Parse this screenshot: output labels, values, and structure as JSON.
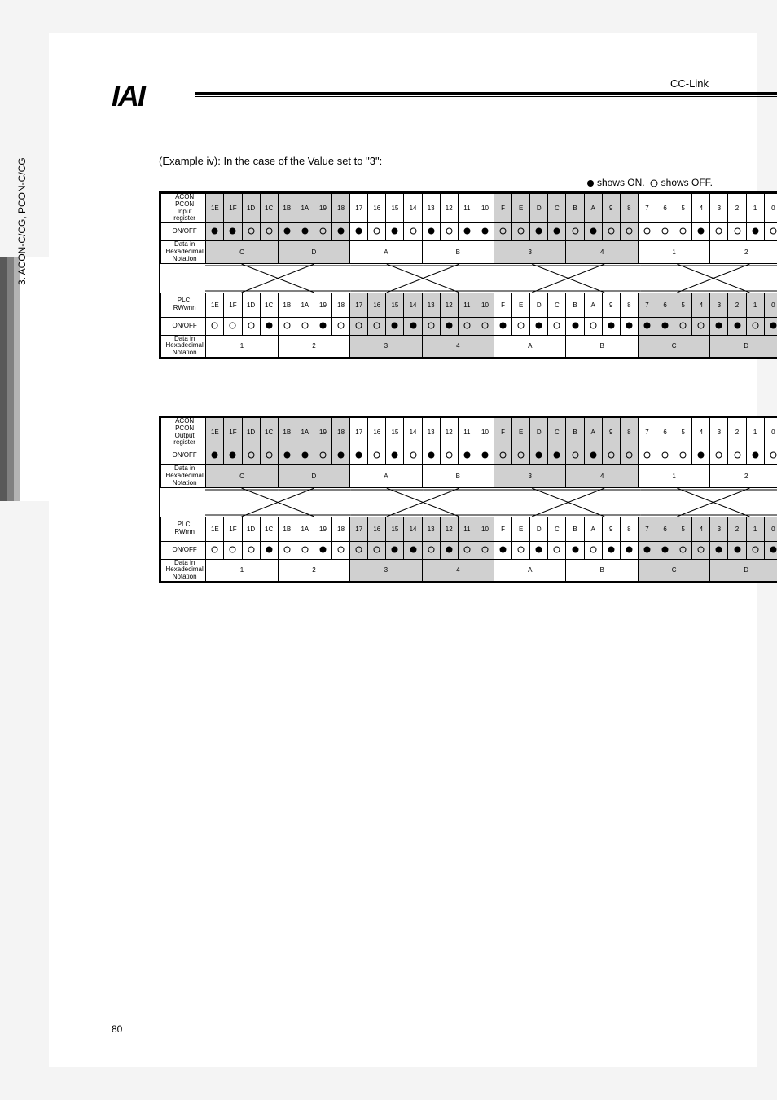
{
  "header": {
    "logo": "IAI",
    "right_label": "CC-Link"
  },
  "side_label": "3. ACON-C/CG, PCON-C/CG",
  "example_line": "(Example iv): In the case of the Value set to \"3\":",
  "legend_on": "shows ON.",
  "legend_off": "shows OFF.",
  "bit_headers": [
    "1E",
    "1F",
    "1D",
    "1C",
    "1B",
    "1A",
    "19",
    "18",
    "17",
    "16",
    "15",
    "14",
    "13",
    "12",
    "11",
    "10",
    "F",
    "E",
    "D",
    "C",
    "B",
    "A",
    "9",
    "8",
    "7",
    "6",
    "5",
    "4",
    "3",
    "2",
    "1",
    "0"
  ],
  "labels": {
    "acon_input": "ACON\nPCON\nInput\nregister",
    "acon_output": "ACON\nPCON\nOutput\nregister",
    "plc_rwwnn": "PLC:\nRWwnn",
    "plc_rwrnn": "PLC:\nRWrnn",
    "onoff": "ON/OFF",
    "hex": "Data in\nHexadecimal\nNotation"
  },
  "hex_vals": [
    "C",
    "D",
    "A",
    "B",
    "3",
    "4",
    "1",
    "2"
  ],
  "hex_vals2": [
    "1",
    "2",
    "3",
    "4",
    "A",
    "B",
    "C",
    "D"
  ],
  "block1": {
    "top": {
      "onoff": [
        "on",
        "on",
        "off",
        "off",
        "on",
        "on",
        "off",
        "on",
        "on",
        "off",
        "on",
        "off",
        "on",
        "off",
        "on",
        "on",
        "off",
        "off",
        "on",
        "on",
        "off",
        "on",
        "off",
        "off",
        "off",
        "off",
        "off",
        "on",
        "off",
        "off",
        "on",
        "off"
      ]
    },
    "bottom": {
      "onoff": [
        "off",
        "off",
        "off",
        "on",
        "off",
        "off",
        "on",
        "off",
        "off",
        "off",
        "on",
        "on",
        "off",
        "on",
        "off",
        "off",
        "on",
        "off",
        "on",
        "off",
        "on",
        "off",
        "on",
        "on",
        "on",
        "on",
        "off",
        "off",
        "on",
        "on",
        "off",
        "on"
      ]
    }
  },
  "block2": {
    "top": {
      "onoff": [
        "on",
        "on",
        "off",
        "off",
        "on",
        "on",
        "off",
        "on",
        "on",
        "off",
        "on",
        "off",
        "on",
        "off",
        "on",
        "on",
        "off",
        "off",
        "on",
        "on",
        "off",
        "on",
        "off",
        "off",
        "off",
        "off",
        "off",
        "on",
        "off",
        "off",
        "on",
        "off"
      ]
    },
    "bottom": {
      "onoff": [
        "off",
        "off",
        "off",
        "on",
        "off",
        "off",
        "on",
        "off",
        "off",
        "off",
        "on",
        "on",
        "off",
        "on",
        "off",
        "off",
        "on",
        "off",
        "on",
        "off",
        "on",
        "off",
        "on",
        "on",
        "on",
        "on",
        "off",
        "off",
        "on",
        "on",
        "off",
        "on"
      ]
    }
  },
  "page_number": "80"
}
